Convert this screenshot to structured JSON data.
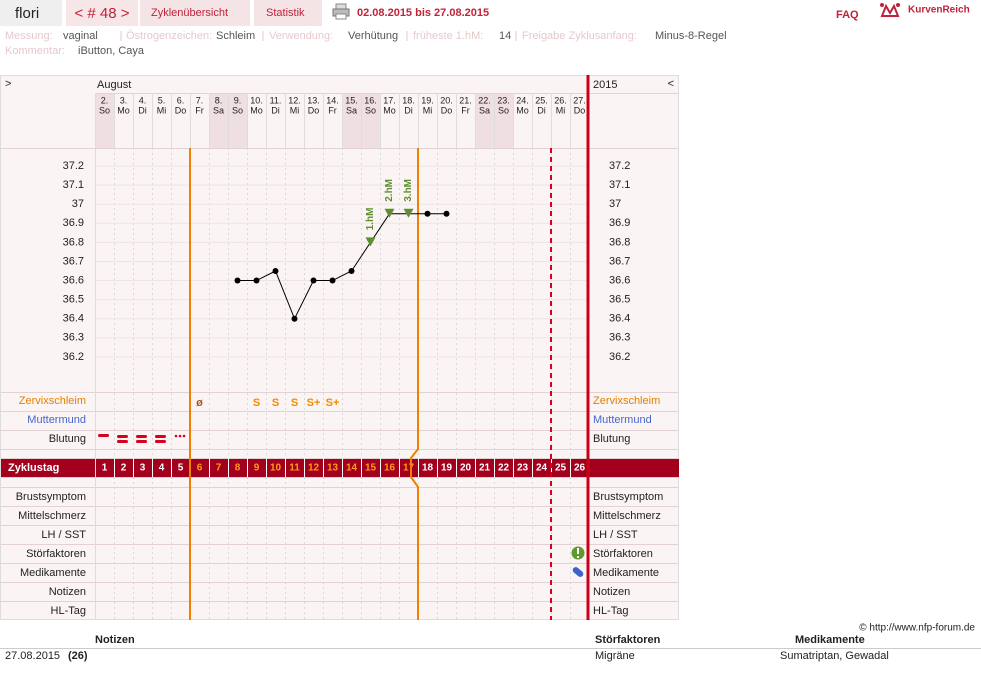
{
  "header": {
    "user": "flori",
    "cycle": "< # 48 >",
    "tabs": [
      "Zyklenübersicht",
      "Statistik"
    ],
    "date_range": "02.08.2015 bis 27.08.2015",
    "faq": "FAQ",
    "brand": "KurvenReich"
  },
  "info": [
    {
      "label": "Messung:",
      "value": "vaginal"
    },
    {
      "label": "Östrogenzeichen:",
      "value": "Schleim"
    },
    {
      "label": "Verwendung:",
      "value": "Verhütung"
    },
    {
      "label": "früheste 1.hM:",
      "value": "14"
    },
    {
      "label": "Freigabe Zyklusanfang:",
      "value": "Minus-8-Regel"
    }
  ],
  "comment": {
    "label": "Kommentar:",
    "value": "iButton, Caya"
  },
  "chart_data": {
    "type": "line",
    "month": "August",
    "year": "2015",
    "nav_left": ">",
    "nav_right": "<",
    "categories": [
      "2.",
      "3.",
      "4.",
      "5.",
      "6.",
      "7.",
      "8.",
      "9.",
      "10.",
      "11.",
      "12.",
      "13.",
      "14.",
      "15.",
      "16.",
      "17.",
      "18.",
      "19.",
      "20.",
      "21.",
      "22.",
      "23.",
      "24.",
      "25.",
      "26.",
      "27."
    ],
    "weekdays": [
      "So",
      "Mo",
      "Di",
      "Mi",
      "Do",
      "Fr",
      "Sa",
      "So",
      "Mo",
      "Di",
      "Mi",
      "Do",
      "Fr",
      "Sa",
      "So",
      "Mo",
      "Di",
      "Mi",
      "Do",
      "Fr",
      "Sa",
      "So",
      "Mo",
      "Di",
      "Mi",
      "Do"
    ],
    "values": [
      null,
      null,
      null,
      null,
      null,
      null,
      null,
      36.6,
      36.6,
      36.65,
      36.4,
      36.6,
      36.6,
      36.65,
      36.8,
      36.95,
      36.95,
      36.95,
      36.95,
      null,
      null,
      null,
      null,
      null,
      null,
      null
    ],
    "hm_labels": [
      null,
      null,
      null,
      null,
      null,
      null,
      null,
      null,
      null,
      null,
      null,
      null,
      null,
      null,
      "1.hM",
      "2.hM",
      "3.hM",
      null,
      null,
      null,
      null,
      null,
      null,
      null,
      null,
      null
    ],
    "mucus": [
      null,
      null,
      null,
      null,
      null,
      "ø",
      null,
      null,
      "S",
      "S",
      "S",
      "S+",
      "S+",
      null,
      null,
      null,
      null,
      null,
      null,
      null,
      null,
      null,
      null,
      null,
      null,
      null
    ],
    "cycle_days": [
      1,
      2,
      3,
      4,
      5,
      6,
      7,
      8,
      9,
      10,
      11,
      12,
      13,
      14,
      15,
      16,
      17,
      18,
      19,
      20,
      21,
      22,
      23,
      24,
      25,
      26
    ],
    "ylim": [
      36.0,
      37.3
    ],
    "yticks": [
      36.2,
      36.3,
      36.4,
      36.5,
      36.6,
      36.7,
      36.8,
      36.9,
      37,
      37.1,
      37.2
    ],
    "color": "#000000",
    "hm_color": "#5e8f2e",
    "rows_top": [
      "Zervixschleim",
      "Muttermund",
      "Blutung"
    ],
    "cycle_row": "Zyklustag",
    "rows_bottom": [
      "Brustsymptom",
      "Mittelschmerz",
      "LH / SST",
      "Störfaktoren",
      "Medikamente",
      "Notizen",
      "HL-Tag"
    ]
  },
  "footer": {
    "copyright": "© http://www.nfp-forum.de",
    "headers": [
      "Notizen",
      "Störfaktoren",
      "Medikamente"
    ],
    "rows": [
      [
        "27.08.2015",
        "(26)",
        "Migräne",
        "Sumatriptan, Gewadal"
      ]
    ]
  }
}
